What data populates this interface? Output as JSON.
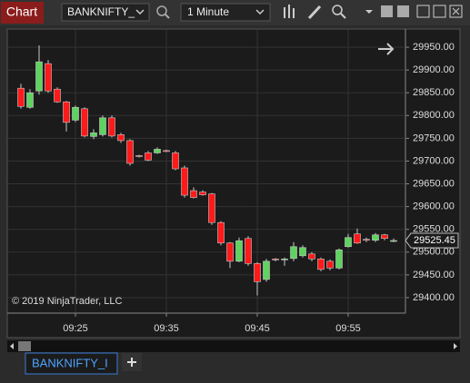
{
  "toolbar": {
    "tab_title": "Chart",
    "instrument": "BANKNIFTY_",
    "interval": "1 Minute"
  },
  "chart_data": {
    "type": "candlestick",
    "copyright": "© 2019 NinjaTrader, LLC",
    "categories": [
      null,
      null,
      null,
      null,
      null,
      null,
      "09:25",
      null,
      null,
      null,
      null,
      null,
      null,
      null,
      null,
      null,
      "09:35",
      null,
      null,
      null,
      null,
      null,
      null,
      null,
      null,
      null,
      "09:45",
      null,
      null,
      null,
      null,
      null,
      null,
      null,
      null,
      null,
      "09:55",
      null,
      null,
      null,
      null,
      null
    ],
    "open": [
      29860,
      29818,
      29854,
      29914,
      29858,
      29830,
      29790,
      29815,
      29754,
      29758,
      29795,
      29758,
      29745,
      29712,
      29718,
      29718,
      29723,
      29718,
      29685,
      29635,
      29632,
      29628,
      29565,
      29520,
      29480,
      29530,
      29475,
      29440,
      29485,
      29484,
      29486,
      29492,
      29496,
      29485,
      29480,
      29465,
      29512,
      29540,
      29528,
      29526,
      29538,
      29525
    ],
    "high": [
      29870,
      29858,
      29954,
      29922,
      29862,
      29832,
      29822,
      29818,
      29770,
      29800,
      29800,
      29762,
      29748,
      29714,
      29722,
      29730,
      29725,
      29722,
      29690,
      29642,
      29636,
      29630,
      29568,
      29522,
      29532,
      29535,
      29478,
      29485,
      29487,
      29488,
      29522,
      29515,
      29500,
      29488,
      29484,
      29508,
      29540,
      29552,
      29532,
      29542,
      29540,
      29530
    ],
    "low": [
      29815,
      29815,
      29846,
      29850,
      29828,
      29765,
      29786,
      29752,
      29748,
      29754,
      29752,
      29740,
      29690,
      29708,
      29700,
      29716,
      29720,
      29680,
      29620,
      29618,
      29624,
      29560,
      29515,
      29465,
      29478,
      29470,
      29405,
      29435,
      29480,
      29470,
      29480,
      29488,
      29480,
      29458,
      29460,
      29462,
      29510,
      29518,
      29522,
      29522,
      29526,
      29522
    ],
    "close": [
      29820,
      29850,
      29918,
      29854,
      29830,
      29785,
      29818,
      29755,
      29762,
      29795,
      29755,
      29745,
      29695,
      29710,
      29702,
      29726,
      29722,
      29683,
      29625,
      29620,
      29626,
      29565,
      29520,
      29480,
      29525,
      29475,
      29435,
      29480,
      29483,
      29485,
      29512,
      29510,
      29485,
      29462,
      29465,
      29505,
      29532,
      29520,
      29527,
      29538,
      29530,
      29525.45
    ],
    "last_price": 29525.45,
    "up_color": "#5fd35f",
    "down_color": "#ff1a1a",
    "wick_color": "#c8c8c8",
    "ylim": [
      29368,
      29988
    ],
    "yticks": [
      {
        "value": 29400,
        "label": "29400.00"
      },
      {
        "value": 29450,
        "label": "29450.00"
      },
      {
        "value": 29500,
        "label": "29500.00"
      },
      {
        "value": 29550,
        "label": "29550.00"
      },
      {
        "value": 29600,
        "label": "29600.00"
      },
      {
        "value": 29650,
        "label": "29650.00"
      },
      {
        "value": 29700,
        "label": "29700.00"
      },
      {
        "value": 29750,
        "label": "29750.00"
      },
      {
        "value": 29800,
        "label": "29800.00"
      },
      {
        "value": 29850,
        "label": "29850.00"
      },
      {
        "value": 29900,
        "label": "29900.00"
      },
      {
        "value": 29950,
        "label": "29950.00"
      }
    ],
    "grid": true
  },
  "tabs": [
    "BANKNIFTY_I"
  ]
}
